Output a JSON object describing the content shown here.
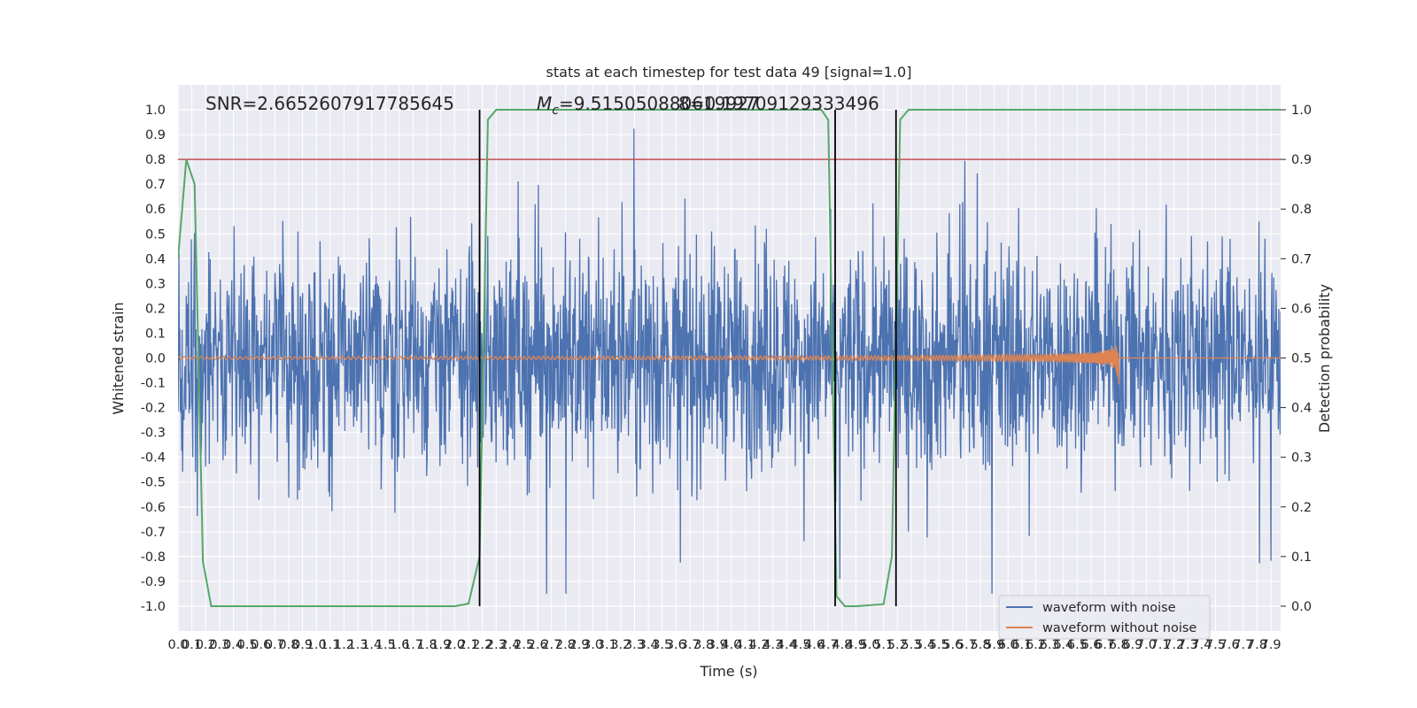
{
  "chart_data": {
    "type": "line",
    "title": "stats at each timestep for test data 49 [signal=1.0]",
    "xlabel": "Time (s)",
    "ylabel": "Whitened strain",
    "y2label": "Detection probability",
    "xlim": [
      0.0,
      7.97
    ],
    "ylim": [
      -1.1,
      1.1
    ],
    "y2lim": [
      -0.05,
      1.05
    ],
    "x_ticks": [
      0.0,
      0.1,
      0.2,
      0.3,
      0.4,
      0.5,
      0.6,
      0.7,
      0.8,
      0.9,
      1.0,
      1.1,
      1.2,
      1.3,
      1.4,
      1.5,
      1.6,
      1.7,
      1.8,
      1.9,
      2.0,
      2.1,
      2.2,
      2.3,
      2.4,
      2.5,
      2.6,
      2.7,
      2.8,
      2.9,
      3.0,
      3.1,
      3.2,
      3.3,
      3.4,
      3.5,
      3.6,
      3.7,
      3.8,
      3.9,
      4.0,
      4.1,
      4.2,
      4.3,
      4.4,
      4.5,
      4.6,
      4.7,
      4.8,
      4.9,
      5.0,
      5.1,
      5.2,
      5.3,
      5.4,
      5.5,
      5.6,
      5.7,
      5.8,
      5.9,
      6.0,
      6.1,
      6.2,
      6.3,
      6.4,
      6.5,
      6.6,
      6.7,
      6.8,
      6.9,
      7.0,
      7.1,
      7.2,
      7.3,
      7.4,
      7.5,
      7.6,
      7.7,
      7.8,
      7.9
    ],
    "y_ticks": [
      -1.0,
      -0.9,
      -0.8,
      -0.7,
      -0.6,
      -0.5,
      -0.4,
      -0.3,
      -0.2,
      -0.1,
      0.0,
      0.1,
      0.2,
      0.3,
      0.4,
      0.5,
      0.6,
      0.7,
      0.8,
      0.9,
      1.0
    ],
    "y2_ticks": [
      0.0,
      0.1,
      0.2,
      0.3,
      0.4,
      0.5,
      0.6,
      0.7,
      0.8,
      0.9,
      1.0
    ],
    "grid": true,
    "legend_position": "lower-right",
    "series": [
      {
        "name": "waveform with noise",
        "color": "#4c72b0",
        "axis": "left",
        "kind": "noise",
        "range": [
          -0.95,
          1.0
        ]
      },
      {
        "name": "waveform without noise",
        "color": "#dd8452",
        "axis": "left",
        "kind": "chirp",
        "merger_time": 6.8,
        "peak_amplitude": 0.15
      }
    ],
    "detection_probability": {
      "color": "#55a868",
      "axis": "right",
      "x": [
        0.0,
        0.06,
        0.12,
        0.18,
        0.24,
        2.0,
        2.1,
        2.18,
        2.24,
        2.3,
        4.65,
        4.7,
        4.76,
        4.82,
        4.9,
        5.1,
        5.16,
        5.22,
        5.28,
        7.97
      ],
      "y": [
        0.7,
        0.9,
        0.85,
        0.09,
        0.0,
        0.0,
        0.005,
        0.1,
        0.98,
        1.0,
        1.0,
        0.98,
        0.02,
        0.0,
        0.0,
        0.004,
        0.1,
        0.98,
        1.0,
        1.0
      ]
    },
    "threshold": {
      "y2": 0.9,
      "color": "#c44e52"
    },
    "vertical_lines": [
      2.18,
      4.75,
      5.19
    ],
    "annotations": {
      "snr": "SNR=2.6652607917785645",
      "mc_prefix": "M",
      "mc_sub": "c",
      "mc_value": "=9.515050880619927",
      "overlap": "8=0.19709129333496"
    }
  }
}
